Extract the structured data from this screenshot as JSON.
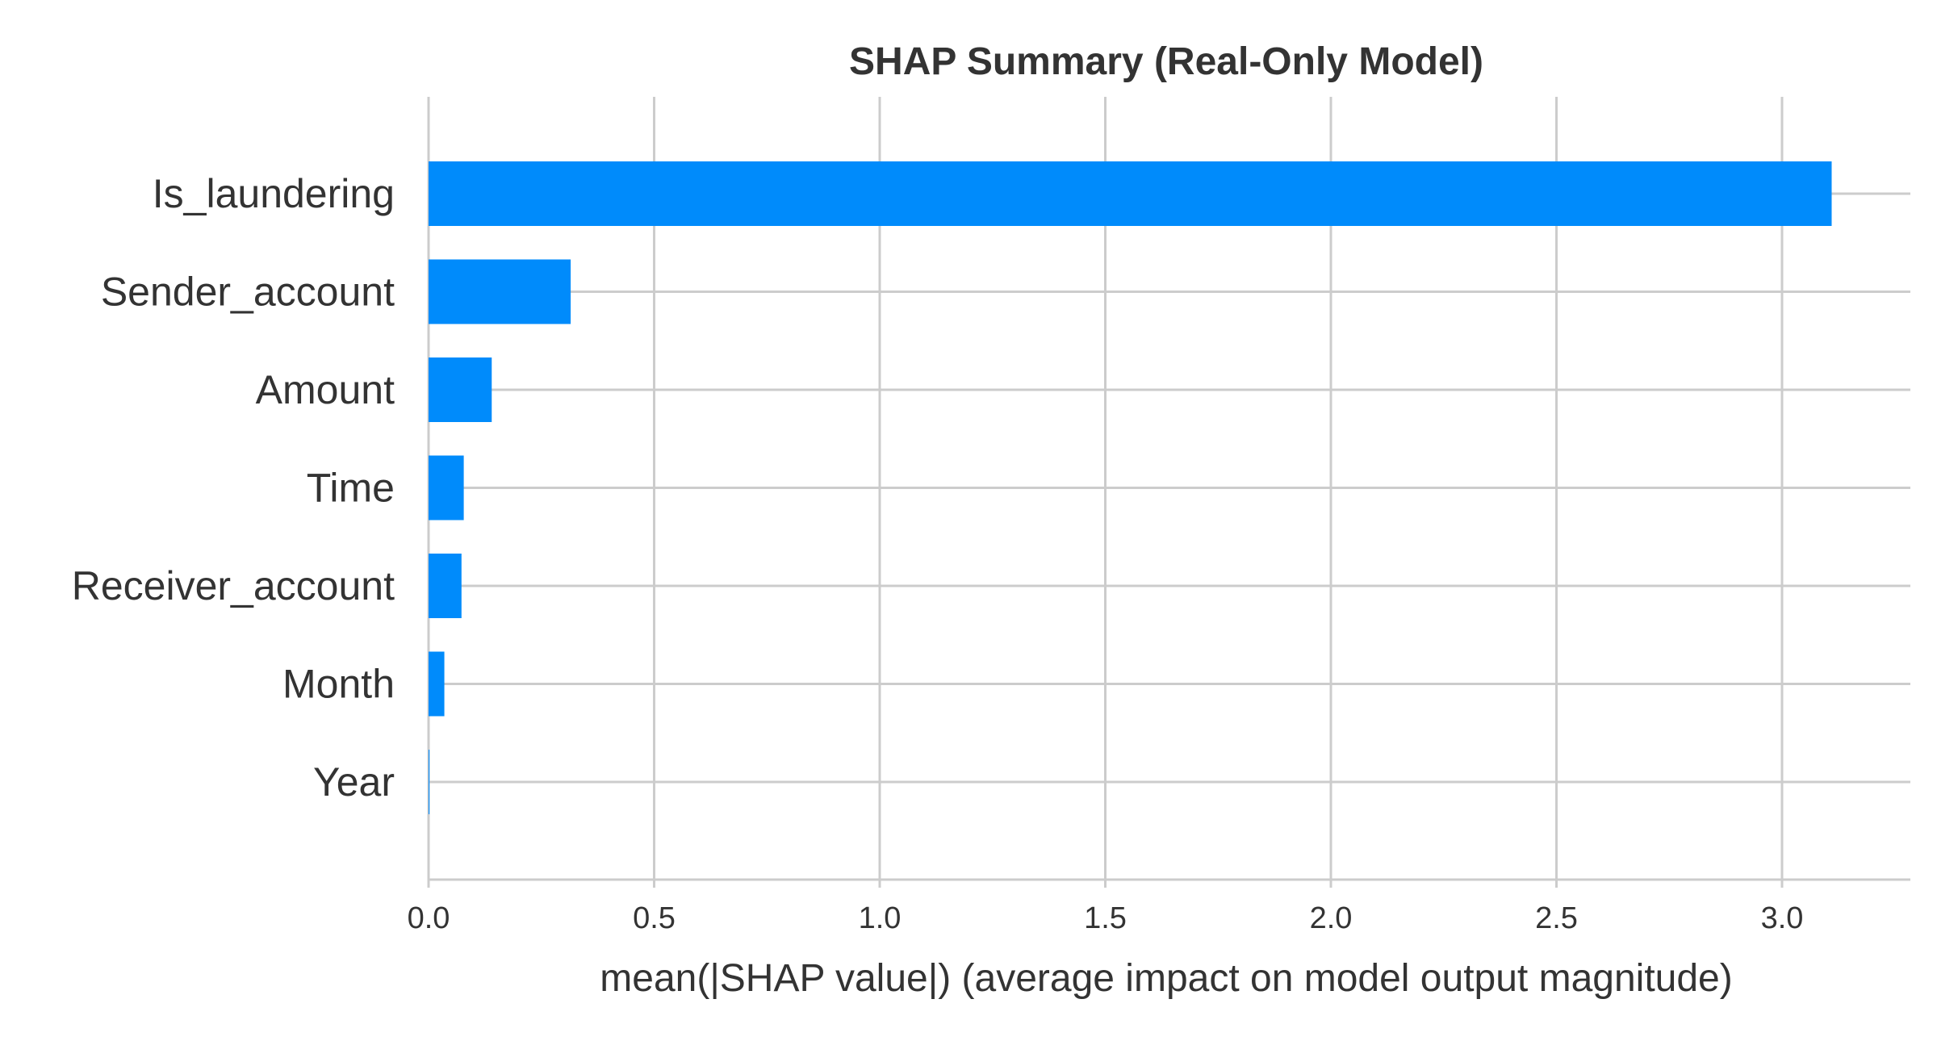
{
  "chart_data": {
    "type": "bar",
    "orientation": "horizontal",
    "title": "SHAP Summary (Real-Only Model)",
    "xlabel": "mean(|SHAP value|) (average impact on model output magnitude)",
    "ylabel": "",
    "categories": [
      "Is_laundering",
      "Sender_account",
      "Amount",
      "Time",
      "Receiver_account",
      "Month",
      "Year"
    ],
    "values": [
      3.11,
      0.315,
      0.14,
      0.078,
      0.073,
      0.035,
      0.002
    ],
    "xlim": [
      0,
      3.27
    ],
    "xticks": [
      0.0,
      0.5,
      1.0,
      1.5,
      2.0,
      2.5,
      3.0
    ],
    "xtick_labels": [
      "0.0",
      "0.5",
      "1.0",
      "1.5",
      "2.0",
      "2.5",
      "3.0"
    ],
    "grid": true,
    "bar_color": "#008bfb",
    "grid_color": "#cccccc",
    "text_color": "#333333"
  }
}
